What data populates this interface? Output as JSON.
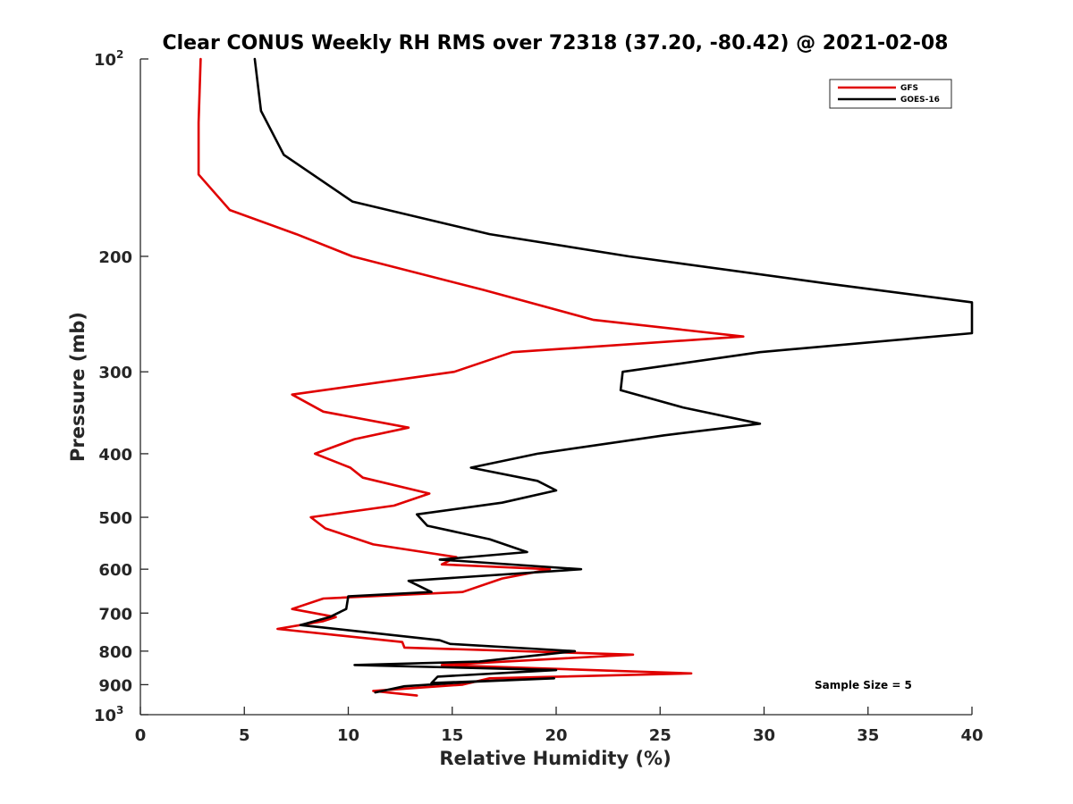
{
  "chart_data": {
    "type": "line",
    "title": "Clear CONUS Weekly RH RMS over 72318 (37.20, -80.42) @ 2021-02-08",
    "xlabel": "Relative Humidity (%)",
    "ylabel": "Pressure (mb)",
    "xlim": [
      0,
      40
    ],
    "ylim": [
      100,
      1000
    ],
    "y_scale": "log",
    "y_reversed": true,
    "x_ticks": [
      "0",
      "5",
      "10",
      "15",
      "20",
      "25",
      "30",
      "35",
      "40"
    ],
    "y_ticks": [
      {
        "value": 100,
        "label": "10",
        "sup": "2"
      },
      {
        "value": 200,
        "label": "200"
      },
      {
        "value": 300,
        "label": "300"
      },
      {
        "value": 400,
        "label": "400"
      },
      {
        "value": 500,
        "label": "500"
      },
      {
        "value": 600,
        "label": "600"
      },
      {
        "value": 700,
        "label": "700"
      },
      {
        "value": 800,
        "label": "800"
      },
      {
        "value": 900,
        "label": "900"
      },
      {
        "value": 1000,
        "label": "10",
        "sup": "3"
      }
    ],
    "grid": false,
    "legend": "top-right",
    "series": [
      {
        "name": "GFS",
        "color": "#e00000",
        "points": [
          [
            2.9,
            100
          ],
          [
            2.8,
            125
          ],
          [
            2.8,
            150
          ],
          [
            4.3,
            170
          ],
          [
            7.5,
            185
          ],
          [
            10.2,
            200
          ],
          [
            16.5,
            225
          ],
          [
            21.8,
            250
          ],
          [
            29.0,
            265
          ],
          [
            17.9,
            280
          ],
          [
            15.1,
            300
          ],
          [
            7.3,
            325
          ],
          [
            8.8,
            345
          ],
          [
            12.9,
            365
          ],
          [
            10.3,
            380
          ],
          [
            8.4,
            400
          ],
          [
            10.1,
            420
          ],
          [
            10.7,
            435
          ],
          [
            13.9,
            460
          ],
          [
            12.2,
            480
          ],
          [
            8.2,
            500
          ],
          [
            8.9,
            520
          ],
          [
            11.2,
            550
          ],
          [
            15.2,
            575
          ],
          [
            14.5,
            590
          ],
          [
            19.7,
            600
          ],
          [
            17.4,
            620
          ],
          [
            15.5,
            650
          ],
          [
            8.8,
            665
          ],
          [
            7.3,
            690
          ],
          [
            9.4,
            710
          ],
          [
            8.8,
            720
          ],
          [
            6.6,
            740
          ],
          [
            12.6,
            775
          ],
          [
            12.7,
            790
          ],
          [
            23.7,
            810
          ],
          [
            14.5,
            840
          ],
          [
            26.5,
            865
          ],
          [
            16.8,
            880
          ],
          [
            15.5,
            900
          ],
          [
            11.2,
            920
          ],
          [
            13.3,
            935
          ]
        ]
      },
      {
        "name": "GOES-16",
        "color": "#000000",
        "points": [
          [
            5.5,
            100
          ],
          [
            5.8,
            120
          ],
          [
            6.9,
            140
          ],
          [
            10.2,
            165
          ],
          [
            16.8,
            185
          ],
          [
            23.5,
            200
          ],
          [
            33.0,
            220
          ],
          [
            40.0,
            235
          ],
          [
            40.0,
            262
          ],
          [
            29.8,
            280
          ],
          [
            23.2,
            300
          ],
          [
            23.1,
            320
          ],
          [
            26.1,
            340
          ],
          [
            29.8,
            360
          ],
          [
            25.2,
            375
          ],
          [
            19.1,
            400
          ],
          [
            15.9,
            420
          ],
          [
            19.1,
            440
          ],
          [
            20.0,
            455
          ],
          [
            17.4,
            475
          ],
          [
            13.3,
            495
          ],
          [
            13.8,
            515
          ],
          [
            16.8,
            540
          ],
          [
            18.6,
            565
          ],
          [
            14.4,
            580
          ],
          [
            21.2,
            600
          ],
          [
            12.9,
            625
          ],
          [
            14.0,
            650
          ],
          [
            10.0,
            660
          ],
          [
            9.9,
            690
          ],
          [
            9.1,
            710
          ],
          [
            7.7,
            730
          ],
          [
            14.4,
            770
          ],
          [
            14.9,
            780
          ],
          [
            20.9,
            800
          ],
          [
            16.3,
            830
          ],
          [
            10.3,
            840
          ],
          [
            20.0,
            855
          ],
          [
            14.3,
            875
          ],
          [
            14.0,
            895
          ],
          [
            19.9,
            880
          ],
          [
            16.2,
            890
          ],
          [
            12.7,
            905
          ],
          [
            11.3,
            925
          ]
        ]
      }
    ],
    "annotation": "Sample Size = 5"
  }
}
